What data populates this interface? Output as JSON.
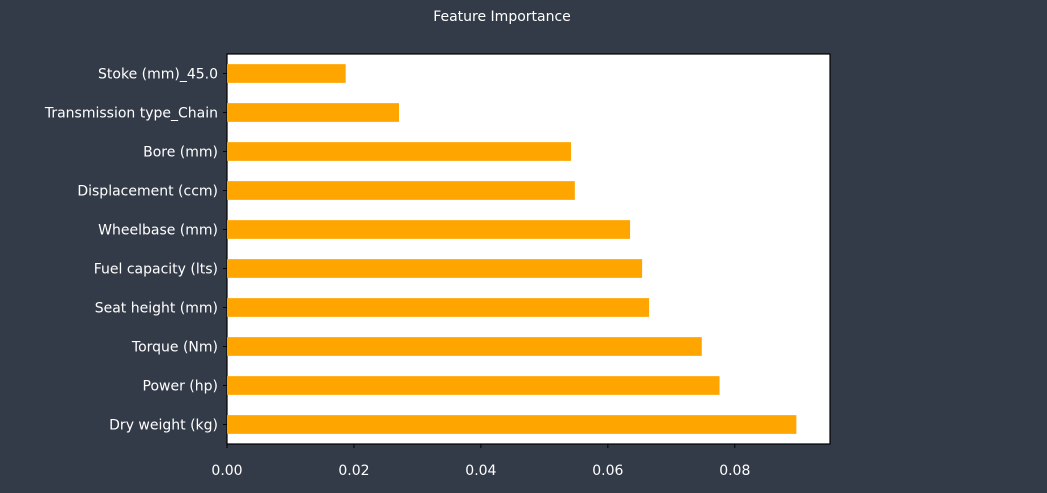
{
  "chart_data": {
    "type": "bar",
    "orientation": "horizontal",
    "title": "Feature Importance",
    "xlabel": "",
    "ylabel": "",
    "categories": [
      "Stoke (mm)_45.0",
      "Transmission type_Chain",
      "Bore (mm)",
      "Displacement (ccm)",
      "Wheelbase (mm)",
      "Fuel capacity (lts)",
      "Seat height (mm)",
      "Torque (Nm)",
      "Power (hp)",
      "Dry weight (kg)"
    ],
    "values": [
      0.0187,
      0.0271,
      0.0542,
      0.0548,
      0.0635,
      0.0654,
      0.0665,
      0.0748,
      0.0776,
      0.0897
    ],
    "xlim": [
      0,
      0.095
    ],
    "xticks": [
      "0.00",
      "0.02",
      "0.04",
      "0.06",
      "0.08"
    ],
    "bar_color": "#ffa500",
    "plot_background": "#ffffff",
    "page_background": "#333a48",
    "grid": false
  }
}
